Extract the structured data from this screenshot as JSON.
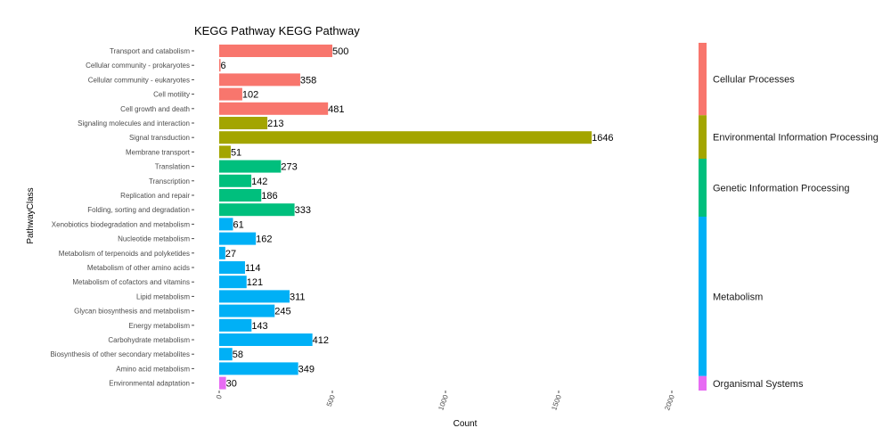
{
  "chart_data": {
    "type": "bar",
    "orientation": "horizontal",
    "title": "KEGG Pathway KEGG Pathway",
    "xlabel": "Count",
    "ylabel": "PathwayClass",
    "xlim": [
      0,
      2000
    ],
    "xticks": [
      0,
      500,
      1000,
      1500,
      2000
    ],
    "grid": false,
    "legend_position": "right",
    "categories": [
      "Transport and catabolism",
      "Cellular community - prokaryotes",
      "Cellular community - eukaryotes",
      "Cell motility",
      "Cell growth and death",
      "Signaling molecules and interaction",
      "Signal transduction",
      "Membrane transport",
      "Translation",
      "Transcription",
      "Replication and repair",
      "Folding, sorting and degradation",
      "Xenobiotics biodegradation and metabolism",
      "Nucleotide metabolism",
      "Metabolism of terpenoids and polyketides",
      "Metabolism of other amino acids",
      "Metabolism of cofactors and vitamins",
      "Lipid metabolism",
      "Glycan biosynthesis and metabolism",
      "Energy metabolism",
      "Carbohydrate metabolism",
      "Biosynthesis of other secondary metabolites",
      "Amino acid metabolism",
      "Environmental adaptation"
    ],
    "values": [
      500,
      6,
      358,
      102,
      481,
      213,
      1646,
      51,
      273,
      142,
      186,
      333,
      61,
      162,
      27,
      114,
      121,
      311,
      245,
      143,
      412,
      58,
      349,
      30
    ],
    "groups": [
      "Cellular Processes",
      "Cellular Processes",
      "Cellular Processes",
      "Cellular Processes",
      "Cellular Processes",
      "Environmental Information Processing",
      "Environmental Information Processing",
      "Environmental Information Processing",
      "Genetic Information Processing",
      "Genetic Information Processing",
      "Genetic Information Processing",
      "Genetic Information Processing",
      "Metabolism",
      "Metabolism",
      "Metabolism",
      "Metabolism",
      "Metabolism",
      "Metabolism",
      "Metabolism",
      "Metabolism",
      "Metabolism",
      "Metabolism",
      "Metabolism",
      "Organismal Systems"
    ],
    "legend": [
      {
        "name": "Cellular Processes",
        "color": "#F8766D"
      },
      {
        "name": "Environmental Information Processing",
        "color": "#A3A500"
      },
      {
        "name": "Genetic Information Processing",
        "color": "#00BF7D"
      },
      {
        "name": "Metabolism",
        "color": "#00B0F6"
      },
      {
        "name": "Organismal Systems",
        "color": "#E76BF3"
      }
    ]
  }
}
